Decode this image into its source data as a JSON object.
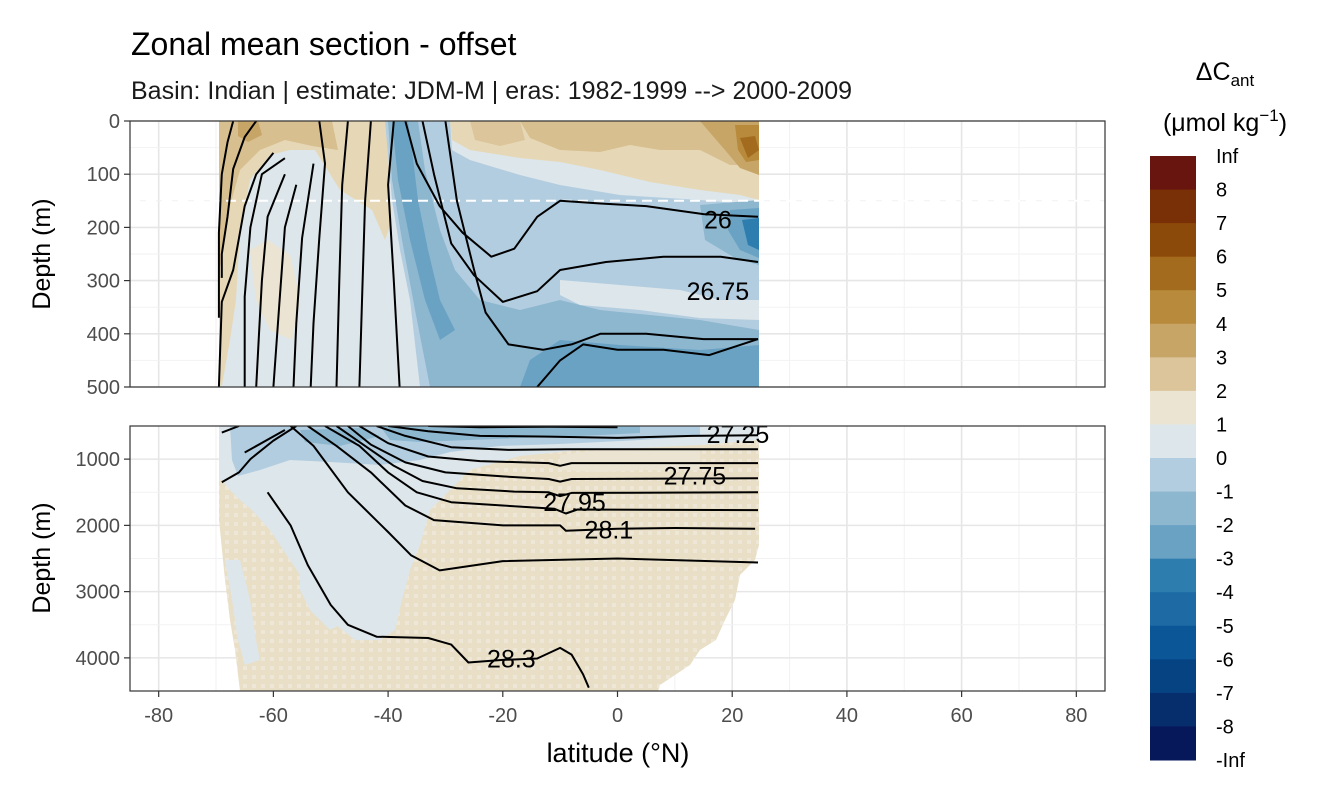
{
  "chart_data": {
    "type": "heatmap",
    "title": "Zonal mean section - offset",
    "subtitle": "Basin: Indian | estimate: JDM-M | eras: 1982-1999 --> 2000-2009",
    "xlabel": "latitude (°N)",
    "ylabel": "Depth (m)",
    "xlim": [
      -85,
      85
    ],
    "x_ticks": [
      -80,
      -60,
      -40,
      -20,
      0,
      20,
      40,
      60,
      80
    ],
    "grid": true,
    "legend_position": "right",
    "legend_title": "ΔC",
    "legend_title_sub": "ant",
    "legend_unit_pre": "(μmol kg",
    "legend_unit_sup": "−1",
    "legend_unit_post": ")",
    "legend_breaks": [
      "Inf",
      "8",
      "7",
      "6",
      "5",
      "4",
      "3",
      "2",
      "1",
      "0",
      "-1",
      "-2",
      "-3",
      "-4",
      "-5",
      "-6",
      "-7",
      "-8",
      "-Inf"
    ],
    "legend_colors": [
      "#67150e",
      "#7a3006",
      "#8c4a0a",
      "#a36b1d",
      "#b88a3c",
      "#c7a567",
      "#dcc59b",
      "#ece4d2",
      "#dde6ea",
      "#b3cde0",
      "#8db7cf",
      "#6aa2c4",
      "#2e7daf",
      "#1d6aa5",
      "#0a5696",
      "#064383",
      "#062e6c",
      "#06175a"
    ],
    "reference_depth": 150,
    "panels": [
      {
        "name": "upper",
        "ylim": [
          500,
          0
        ],
        "y_ticks": [
          0,
          100,
          200,
          300,
          400,
          500
        ],
        "isopycnals": [
          {
            "label": "",
            "points": [
              [
                -67,
                0
              ],
              [
                -68,
                40
              ],
              [
                -69,
                100
              ],
              [
                -69.5,
                210
              ],
              [
                -69.5,
                300
              ],
              [
                -69.5,
                370
              ]
            ]
          },
          {
            "label": "",
            "points": [
              [
                -63,
                0
              ],
              [
                -65,
                30
              ],
              [
                -67,
                90
              ],
              [
                -68,
                180
              ],
              [
                -69,
                250
              ],
              [
                -69,
                295
              ]
            ]
          },
          {
            "label": "",
            "points": [
              [
                -60,
                60
              ],
              [
                -63,
                100
              ],
              [
                -65,
                160
              ],
              [
                -66,
                220
              ],
              [
                -67,
                280
              ],
              [
                -69,
                340
              ],
              [
                -69.5,
                500
              ]
            ]
          },
          {
            "label": "",
            "points": [
              [
                -58,
                70
              ],
              [
                -62,
                100
              ],
              [
                -64,
                200
              ],
              [
                -65,
                330
              ],
              [
                -65,
                400
              ],
              [
                -65,
                500
              ]
            ]
          },
          {
            "label": "",
            "points": [
              [
                -58,
                100
              ],
              [
                -61,
                180
              ],
              [
                -62,
                300
              ],
              [
                -62.5,
                400
              ],
              [
                -63,
                500
              ]
            ]
          },
          {
            "label": "",
            "points": [
              [
                -56,
                120
              ],
              [
                -58,
                200
              ],
              [
                -59,
                350
              ],
              [
                -60,
                500
              ]
            ]
          },
          {
            "label": "",
            "points": [
              [
                -53,
                80
              ],
              [
                -55,
                220
              ],
              [
                -56,
                380
              ],
              [
                -56.5,
                500
              ]
            ]
          },
          {
            "label": "",
            "points": [
              [
                -52,
                0
              ],
              [
                -51,
                80
              ],
              [
                -52,
                220
              ],
              [
                -53,
                380
              ],
              [
                -53.5,
                500
              ]
            ]
          },
          {
            "label": "",
            "points": [
              [
                -47,
                0
              ],
              [
                -48,
                120
              ],
              [
                -48.5,
                300
              ],
              [
                -49,
                500
              ]
            ]
          },
          {
            "label": "",
            "points": [
              [
                -43,
                0
              ],
              [
                -44,
                150
              ],
              [
                -44.5,
                320
              ],
              [
                -45,
                500
              ]
            ]
          },
          {
            "label": "",
            "points": [
              [
                -39,
                0
              ],
              [
                -40,
                120
              ],
              [
                -39,
                300
              ],
              [
                -38,
                500
              ]
            ]
          },
          {
            "label": "",
            "points": [
              [
                -37,
                0
              ],
              [
                -35,
                80
              ],
              [
                -31,
                160
              ],
              [
                -27,
                210
              ],
              [
                -22,
                255
              ],
              [
                -18,
                240
              ],
              [
                -14,
                180
              ],
              [
                -10,
                150
              ],
              [
                -3,
                155
              ],
              [
                5,
                160
              ],
              [
                15,
                175
              ],
              [
                24.5,
                180
              ]
            ]
          },
          {
            "label": "26",
            "label_pos": [
              17.5,
              185
            ],
            "points": [
              [
                -34,
                0
              ],
              [
                -32,
                100
              ],
              [
                -29,
                230
              ],
              [
                -25,
                290
              ],
              [
                -20,
                340
              ],
              [
                -14,
                320
              ],
              [
                -10,
                280
              ],
              [
                -2,
                265
              ],
              [
                8,
                255
              ],
              [
                18,
                255
              ],
              [
                24.5,
                265
              ]
            ]
          },
          {
            "label": "26.75",
            "label_pos": [
              17.5,
              320
            ],
            "points": [
              [
                -30,
                0
              ],
              [
                -28,
                150
              ],
              [
                -25,
                280
              ],
              [
                -23,
                360
              ],
              [
                -19,
                420
              ],
              [
                -13,
                430
              ],
              [
                -8,
                420
              ],
              [
                -3,
                400
              ],
              [
                5,
                400
              ],
              [
                15,
                410
              ],
              [
                24.5,
                410
              ]
            ]
          },
          {
            "label": "",
            "points": [
              [
                -14,
                500
              ],
              [
                -10,
                450
              ],
              [
                -6,
                420
              ],
              [
                0,
                430
              ],
              [
                8,
                430
              ],
              [
                16,
                440
              ],
              [
                24.5,
                410
              ]
            ]
          }
        ]
      },
      {
        "name": "lower",
        "ylim": [
          4500,
          500
        ],
        "y_ticks": [
          1000,
          2000,
          3000,
          4000
        ],
        "isopycnals": [
          {
            "label": "",
            "points": [
              [
                -69,
                1350
              ],
              [
                -66,
                1200
              ],
              [
                -64,
                1000
              ],
              [
                -60,
                720
              ],
              [
                -56,
                500
              ]
            ]
          },
          {
            "label": "",
            "points": [
              [
                -69,
                600
              ],
              [
                -66,
                500
              ]
            ]
          },
          {
            "label": "",
            "points": [
              [
                -65,
                900
              ],
              [
                -58,
                560
              ]
            ]
          },
          {
            "label": "",
            "points": [
              [
                -57,
                500
              ],
              [
                -53,
                800
              ],
              [
                -47,
                1500
              ],
              [
                -40,
                2100
              ],
              [
                -36,
                2450
              ],
              [
                -31,
                2680
              ],
              [
                -20,
                2540
              ],
              [
                0,
                2500
              ],
              [
                24.5,
                2560
              ]
            ]
          },
          {
            "label": "28.1",
            "label_pos": [
              -1.5,
              2060
            ],
            "points": [
              [
                -54,
                500
              ],
              [
                -49,
                800
              ],
              [
                -43,
                1200
              ],
              [
                -37,
                1700
              ],
              [
                -32,
                1920
              ],
              [
                -20,
                2000
              ],
              [
                -10,
                2000
              ],
              [
                -9,
                2080
              ],
              [
                0,
                2050
              ],
              [
                10,
                2040
              ],
              [
                24,
                2050
              ]
            ]
          },
          {
            "label": "27.95",
            "label_pos": [
              -7.5,
              1650
            ],
            "points": [
              [
                -51,
                500
              ],
              [
                -45,
                800
              ],
              [
                -40,
                1200
              ],
              [
                -35,
                1500
              ],
              [
                -29,
                1650
              ],
              [
                -20,
                1700
              ],
              [
                -11,
                1750
              ],
              [
                -9,
                1820
              ],
              [
                -7,
                1760
              ],
              [
                24.5,
                1770
              ]
            ]
          },
          {
            "label": "",
            "points": [
              [
                -49,
                500
              ],
              [
                -44,
                800
              ],
              [
                -39,
                1100
              ],
              [
                -34,
                1330
              ],
              [
                -28,
                1440
              ],
              [
                -18,
                1490
              ],
              [
                -12,
                1500
              ],
              [
                -10,
                1560
              ],
              [
                -8,
                1510
              ],
              [
                24.5,
                1500
              ]
            ]
          },
          {
            "label": "27.75",
            "label_pos": [
              13.5,
              1250
            ],
            "points": [
              [
                -47,
                500
              ],
              [
                -43,
                780
              ],
              [
                -37,
                1050
              ],
              [
                -30,
                1200
              ],
              [
                -20,
                1260
              ],
              [
                -12,
                1300
              ],
              [
                -10,
                1340
              ],
              [
                -8,
                1300
              ],
              [
                24.5,
                1290
              ]
            ]
          },
          {
            "label": "",
            "points": [
              [
                -45,
                500
              ],
              [
                -40,
                760
              ],
              [
                -33,
                960
              ],
              [
                -24,
                1030
              ],
              [
                -12,
                1060
              ],
              [
                -10,
                1100
              ],
              [
                -8,
                1060
              ],
              [
                24.5,
                1060
              ]
            ]
          },
          {
            "label": "",
            "points": [
              [
                -42,
                500
              ],
              [
                -37,
                650
              ],
              [
                -29,
                820
              ],
              [
                -19,
                860
              ],
              [
                -9,
                850
              ],
              [
                24.5,
                850
              ]
            ]
          },
          {
            "label": "27.25",
            "label_pos": [
              21,
              620
            ],
            "points": [
              [
                -40,
                500
              ],
              [
                -33,
                580
              ],
              [
                -24,
                650
              ],
              [
                -12,
                660
              ],
              [
                0,
                680
              ],
              [
                13,
                650
              ],
              [
                24.5,
                640
              ]
            ]
          },
          {
            "label": "",
            "points": [
              [
                -33,
                500
              ],
              [
                -24,
                520
              ],
              [
                -12,
                510
              ],
              [
                0,
                520
              ]
            ]
          },
          {
            "label": "28.3",
            "label_pos": [
              -18.5,
              4010
            ],
            "points": [
              [
                -61,
                1500
              ],
              [
                -57,
                2000
              ],
              [
                -54,
                2600
              ],
              [
                -50,
                3200
              ],
              [
                -47,
                3500
              ],
              [
                -42,
                3680
              ],
              [
                -33,
                3700
              ],
              [
                -29,
                3800
              ],
              [
                -26,
                4070
              ],
              [
                -20,
                4030
              ],
              [
                -14,
                4010
              ],
              [
                -10,
                3850
              ],
              [
                -8,
                3950
              ],
              [
                -6,
                4250
              ],
              [
                -5,
                4450
              ]
            ]
          }
        ]
      }
    ]
  }
}
